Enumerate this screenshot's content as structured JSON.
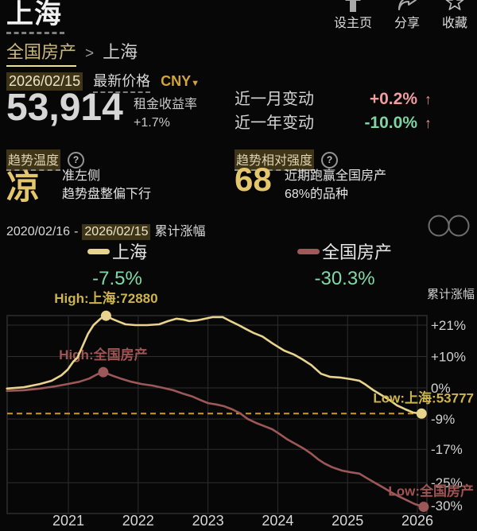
{
  "header": {
    "title": "上海",
    "actions": [
      {
        "label": "设主页",
        "icon": "home-up-icon"
      },
      {
        "label": "分享",
        "icon": "share-icon"
      },
      {
        "label": "收藏",
        "icon": "star-icon"
      }
    ]
  },
  "breadcrumb": {
    "parent": "全国房产",
    "separator": ">",
    "current": "上海"
  },
  "price": {
    "date": "2026/02/15",
    "latest_label": "最新价格",
    "currency": "CNY",
    "currency_caret": "▼",
    "value": "53,914",
    "yield_label": "租金收益率",
    "yield_value": "+1.7%"
  },
  "changes": [
    {
      "label": "近一月变动",
      "value": "+0.2%",
      "arrow": "↑",
      "color": "#ef9d9d"
    },
    {
      "label": "近一年变动",
      "value": "-10.0%",
      "arrow": "↑",
      "color": "#7fd3a2"
    }
  ],
  "trend_temp": {
    "label": "趋势温度",
    "help": "?",
    "value": "凉",
    "desc_line1": "准左侧",
    "desc_line2": "趋势盘整偏下行"
  },
  "trend_strength": {
    "label": "趋势相对强度",
    "help": "?",
    "value": "68",
    "desc_line1": "近期跑赢全国房产",
    "desc_line2": "68%的品种"
  },
  "period": {
    "start": "2020/02/16",
    "dash": "-",
    "end": "2026/02/15",
    "suffix": "累计涨幅"
  },
  "legend": [
    {
      "name": "上海",
      "pct": "-7.5%",
      "color": "#e6d38d",
      "pct_color": "#7fd9a6"
    },
    {
      "name": "全国房产",
      "pct": "-30.3%",
      "color": "#9c5a5a",
      "pct_color": "#7fd9a6"
    }
  ],
  "chart_data": {
    "type": "line",
    "title": "累计涨幅",
    "y_axis": {
      "scale": "log-percent",
      "tick_labels": [
        "+21%",
        "+10%",
        "0%",
        "-9%",
        "-17%",
        "-25%",
        "-30%"
      ],
      "tick_values": [
        21,
        10,
        0,
        -9,
        -17,
        -25,
        -30
      ]
    },
    "x_axis": {
      "ticks": [
        2021,
        2022,
        2023,
        2024,
        2025,
        2026
      ]
    },
    "reference_line": {
      "pct": -7.5,
      "style": "dashed",
      "color": "#cf9a18"
    },
    "grid_color": "#2e2e2e",
    "axis_text_color": "#d2d2d2",
    "series": [
      {
        "name": "上海",
        "color": "#e8d48c",
        "label_color": "#cdb44a",
        "high_label": "High:上海:72880",
        "low_label": "Low:上海:53777",
        "high_value": 72880,
        "low_value": 53777,
        "points": [
          [
            2020.12,
            -0.2
          ],
          [
            2020.36,
            0.2
          ],
          [
            2020.59,
            1.2
          ],
          [
            2020.76,
            2.2
          ],
          [
            2020.9,
            3.9
          ],
          [
            2020.99,
            5.7
          ],
          [
            2021.07,
            8.3
          ],
          [
            2021.13,
            9.6
          ],
          [
            2021.21,
            13.9
          ],
          [
            2021.28,
            17.8
          ],
          [
            2021.36,
            21.0
          ],
          [
            2021.46,
            23.4
          ],
          [
            2021.54,
            24.5
          ],
          [
            2021.62,
            23.4
          ],
          [
            2021.73,
            22.2
          ],
          [
            2021.82,
            21.3
          ],
          [
            2021.96,
            21.0
          ],
          [
            2022.13,
            21.0
          ],
          [
            2022.3,
            21.3
          ],
          [
            2022.43,
            22.5
          ],
          [
            2022.55,
            23.4
          ],
          [
            2022.64,
            23.1
          ],
          [
            2022.73,
            22.5
          ],
          [
            2022.85,
            22.8
          ],
          [
            2022.96,
            23.4
          ],
          [
            2023.07,
            24.0
          ],
          [
            2023.21,
            24.0
          ],
          [
            2023.32,
            22.5
          ],
          [
            2023.44,
            21.0
          ],
          [
            2023.55,
            19.5
          ],
          [
            2023.66,
            18.1
          ],
          [
            2023.78,
            16.9
          ],
          [
            2023.93,
            14.4
          ],
          [
            2024.09,
            12.0
          ],
          [
            2024.23,
            10.7
          ],
          [
            2024.35,
            9.1
          ],
          [
            2024.48,
            7.2
          ],
          [
            2024.62,
            4.4
          ],
          [
            2024.75,
            3.4
          ],
          [
            2024.89,
            3.2
          ],
          [
            2025.05,
            2.7
          ],
          [
            2025.17,
            2.2
          ],
          [
            2025.26,
            1.0
          ],
          [
            2025.37,
            -0.7
          ],
          [
            2025.49,
            -2.2
          ],
          [
            2025.6,
            -3.6
          ],
          [
            2025.71,
            -5.2
          ],
          [
            2025.83,
            -6.3
          ],
          [
            2025.94,
            -7.2
          ],
          [
            2026.06,
            -7.5
          ]
        ]
      },
      {
        "name": "全国房产",
        "color": "#9c5858",
        "label_color": "#a05353",
        "high_label": "High:全国房产",
        "low_label": "Low:全国房产",
        "points": [
          [
            2020.12,
            -0.9
          ],
          [
            2020.36,
            -0.7
          ],
          [
            2020.59,
            -0.2
          ],
          [
            2020.82,
            0.5
          ],
          [
            2020.99,
            1.2
          ],
          [
            2021.16,
            1.9
          ],
          [
            2021.3,
            2.9
          ],
          [
            2021.41,
            4.2
          ],
          [
            2021.5,
            4.9
          ],
          [
            2021.64,
            3.7
          ],
          [
            2021.75,
            2.9
          ],
          [
            2021.9,
            1.9
          ],
          [
            2022.05,
            1.2
          ],
          [
            2022.21,
            0.7
          ],
          [
            2022.36,
            0.0
          ],
          [
            2022.5,
            -0.7
          ],
          [
            2022.64,
            -1.7
          ],
          [
            2022.78,
            -2.6
          ],
          [
            2022.89,
            -3.6
          ],
          [
            2023.0,
            -4.5
          ],
          [
            2023.12,
            -4.9
          ],
          [
            2023.23,
            -5.4
          ],
          [
            2023.35,
            -6.3
          ],
          [
            2023.46,
            -7.4
          ],
          [
            2023.57,
            -9.0
          ],
          [
            2023.69,
            -10.1
          ],
          [
            2023.8,
            -10.9
          ],
          [
            2023.92,
            -11.8
          ],
          [
            2024.03,
            -13.1
          ],
          [
            2024.14,
            -14.5
          ],
          [
            2024.26,
            -15.7
          ],
          [
            2024.37,
            -16.8
          ],
          [
            2024.48,
            -18.1
          ],
          [
            2024.58,
            -19.5
          ],
          [
            2024.67,
            -20.5
          ],
          [
            2024.78,
            -21.4
          ],
          [
            2024.92,
            -22.2
          ],
          [
            2025.05,
            -22.6
          ],
          [
            2025.17,
            -22.9
          ],
          [
            2025.28,
            -24.0
          ],
          [
            2025.4,
            -25.1
          ],
          [
            2025.51,
            -26.1
          ],
          [
            2025.62,
            -27.1
          ],
          [
            2025.74,
            -28.1
          ],
          [
            2025.85,
            -28.9
          ],
          [
            2025.96,
            -29.7
          ],
          [
            2026.09,
            -30.3
          ]
        ]
      }
    ]
  }
}
